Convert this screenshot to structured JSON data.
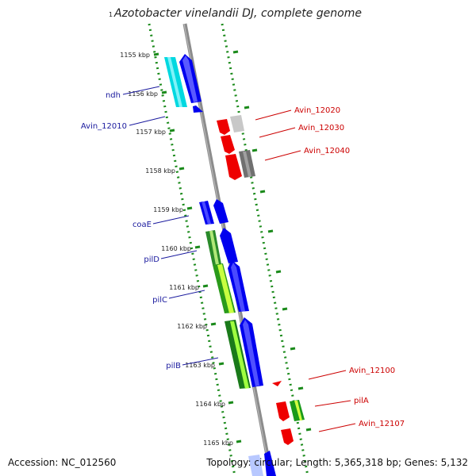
{
  "title": "Azotobacter vinelandii DJ, complete genome",
  "start_tick": "1",
  "scale": {
    "labels": [
      "1155 kbp",
      "1156 kbp",
      "1157 kbp",
      "1158 kbp",
      "1159 kbp",
      "1160 kbp",
      "1161 kbp",
      "1162 kbp",
      "1163 kbp",
      "1164 kbp",
      "1165 kbp"
    ]
  },
  "left_labels": [
    {
      "text": "ndh"
    },
    {
      "text": "Avin_12010"
    },
    {
      "text": "coaE"
    },
    {
      "text": "pilD"
    },
    {
      "text": "pilC"
    },
    {
      "text": "pilB"
    }
  ],
  "right_labels": [
    {
      "text": "Avin_12020"
    },
    {
      "text": "Avin_12030"
    },
    {
      "text": "Avin_12040"
    },
    {
      "text": "Avin_12100"
    },
    {
      "text": "pilA"
    },
    {
      "text": "Avin_12107"
    }
  ],
  "colors": {
    "forward_gene": "#0000ee",
    "reverse_gene": "#ee0000",
    "label_left": "#1a1a9e",
    "label_right": "#cc0000",
    "track_dots": "#1a8a1a",
    "backbone": "#8c8c8c"
  },
  "footer": {
    "accession": "Accession: NC_012560",
    "topology": "Topology: circular; Length: 5,365,318 bp; Genes: 5,132"
  }
}
